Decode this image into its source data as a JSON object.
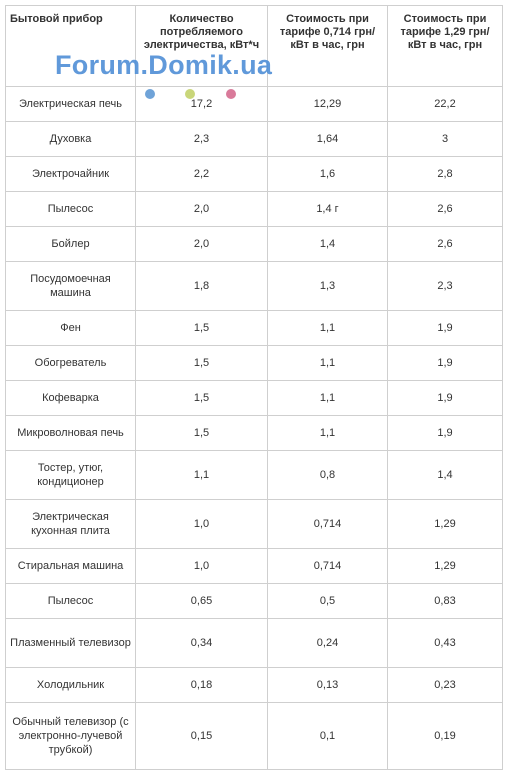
{
  "watermark": "Forum.Domik.ua",
  "table": {
    "header": [
      "Бытовой прибор",
      "Количество потребляемого электричества, кВт*ч",
      "Стоимость при тарифе 0,714 грн/кВт в час, грн",
      "Стоимость при тарифе 1,29 грн/кВт в час, грн"
    ],
    "rows": [
      [
        "Электрическая печь",
        "17,2",
        "12,29",
        "22,2"
      ],
      [
        "Духовка",
        "2,3",
        "1,64",
        "3"
      ],
      [
        "Электрочайник",
        "2,2",
        "1,6",
        "2,8"
      ],
      [
        "Пылесос",
        "2,0",
        "1,4 г",
        "2,6"
      ],
      [
        "Бойлер",
        "2,0",
        "1,4",
        "2,6"
      ],
      [
        "Посудомоечная машина",
        "1,8",
        "1,3",
        "2,3"
      ],
      [
        "Фен",
        "1,5",
        "1,1",
        "1,9"
      ],
      [
        "Обогреватель",
        "1,5",
        "1,1",
        "1,9"
      ],
      [
        "Кофеварка",
        "1,5",
        "1,1",
        "1,9"
      ],
      [
        "Микроволновая печь",
        "1,5",
        "1,1",
        "1,9"
      ],
      [
        "Тостер, утюг, кондиционер",
        "1,1",
        "0,8",
        "1,4"
      ],
      [
        "Электрическая кухонная плита",
        "1,0",
        "0,714",
        "1,29"
      ],
      [
        "Стиральная машина",
        "1,0",
        "0,714",
        "1,29"
      ],
      [
        "Пылесос",
        "0,65",
        "0,5",
        "0,83"
      ],
      [
        "Плазменный телевизор",
        "0,34",
        "0,24",
        "0,43"
      ],
      [
        "Холодильник",
        "0,18",
        "0,13",
        "0,23"
      ],
      [
        "Обычный телевизор (с электронно-лучевой трубкой)",
        "0,15",
        "0,1",
        "0,19"
      ]
    ]
  }
}
